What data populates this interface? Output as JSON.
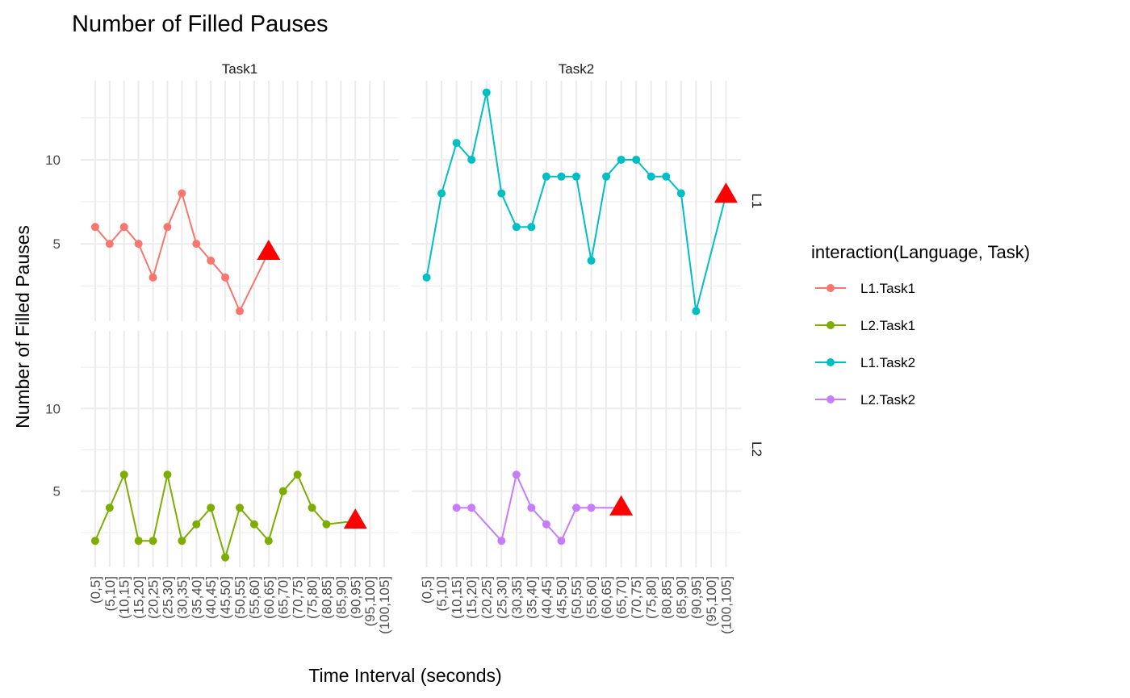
{
  "chart_data": {
    "type": "line",
    "title": "Number of Filled Pauses",
    "xlabel": "Time Interval (seconds)",
    "ylabel": "Number of Filled Pauses",
    "categories": [
      "(0,5]",
      "(5,10]",
      "(10,15]",
      "(15,20]",
      "(20,25]",
      "(25,30]",
      "(30,35]",
      "(35,40]",
      "(40,45]",
      "(45,50]",
      "(50,55]",
      "(55,60]",
      "(60,65]",
      "(65,70]",
      "(70,75]",
      "(75,80]",
      "(80,85]",
      "(85,90]",
      "(90,95]",
      "(95,100]",
      "(100,105]"
    ],
    "yticks": [
      5,
      10
    ],
    "ylim": [
      0.4,
      14.7
    ],
    "facet_columns": [
      "Task1",
      "Task2"
    ],
    "facet_rows": [
      "L1",
      "L2"
    ],
    "grid": true,
    "legend": {
      "title": "interaction(Language, Task)",
      "position": "right",
      "entries": [
        {
          "label": "L1.Task1",
          "color": "#F8766D"
        },
        {
          "label": "L2.Task1",
          "color": "#7CAE00"
        },
        {
          "label": "L1.Task2",
          "color": "#00BFC4"
        },
        {
          "label": "L2.Task2",
          "color": "#C77CFF"
        }
      ]
    },
    "marker_color": "#FF0000",
    "series": [
      {
        "name": "L1.Task1",
        "row": "L1",
        "col": "Task1",
        "color": "#F8766D",
        "x": [
          "(0,5]",
          "(5,10]",
          "(10,15]",
          "(15,20]",
          "(20,25]",
          "(25,30]",
          "(30,35]",
          "(35,40]",
          "(40,45]",
          "(45,50]",
          "(50,55]",
          "(60,65]"
        ],
        "y": [
          6,
          5,
          6,
          5,
          3,
          6,
          8,
          5,
          4,
          3,
          1,
          4.5
        ],
        "triangle_at": "(60,65]"
      },
      {
        "name": "L2.Task1",
        "row": "L2",
        "col": "Task1",
        "color": "#7CAE00",
        "x": [
          "(0,5]",
          "(5,10]",
          "(10,15]",
          "(15,20]",
          "(20,25]",
          "(25,30]",
          "(30,35]",
          "(35,40]",
          "(40,45]",
          "(45,50]",
          "(50,55]",
          "(55,60]",
          "(60,65]",
          "(65,70]",
          "(70,75]",
          "(75,80]",
          "(80,85]",
          "(90,95]"
        ],
        "y": [
          2,
          4,
          6,
          2,
          2,
          6,
          2,
          3,
          4,
          1,
          4,
          3,
          2,
          5,
          6,
          4,
          3,
          3.2
        ],
        "triangle_at": "(90,95]"
      },
      {
        "name": "L1.Task2",
        "row": "L1",
        "col": "Task2",
        "color": "#00BFC4",
        "x": [
          "(0,5]",
          "(5,10]",
          "(10,15]",
          "(15,20]",
          "(20,25]",
          "(25,30]",
          "(30,35]",
          "(35,40]",
          "(40,45]",
          "(45,50]",
          "(50,55]",
          "(55,60]",
          "(60,65]",
          "(65,70]",
          "(70,75]",
          "(75,80]",
          "(80,85]",
          "(85,90]",
          "(90,95]",
          "(100,105]"
        ],
        "y": [
          3,
          8,
          11,
          10,
          14,
          8,
          6,
          6,
          9,
          9,
          9,
          4,
          9,
          10,
          10,
          9,
          9,
          8,
          1,
          7.9
        ],
        "triangle_at": "(100,105]"
      },
      {
        "name": "L2.Task2",
        "row": "L2",
        "col": "Task2",
        "color": "#C77CFF",
        "x": [
          "(10,15]",
          "(15,20]",
          "(25,30]",
          "(30,35]",
          "(35,40]",
          "(40,45]",
          "(45,50]",
          "(50,55]",
          "(55,60]",
          "(65,70]"
        ],
        "y": [
          4,
          4,
          2,
          6,
          4,
          3,
          2,
          4,
          4,
          4
        ],
        "triangle_at": "(65,70]"
      }
    ]
  }
}
